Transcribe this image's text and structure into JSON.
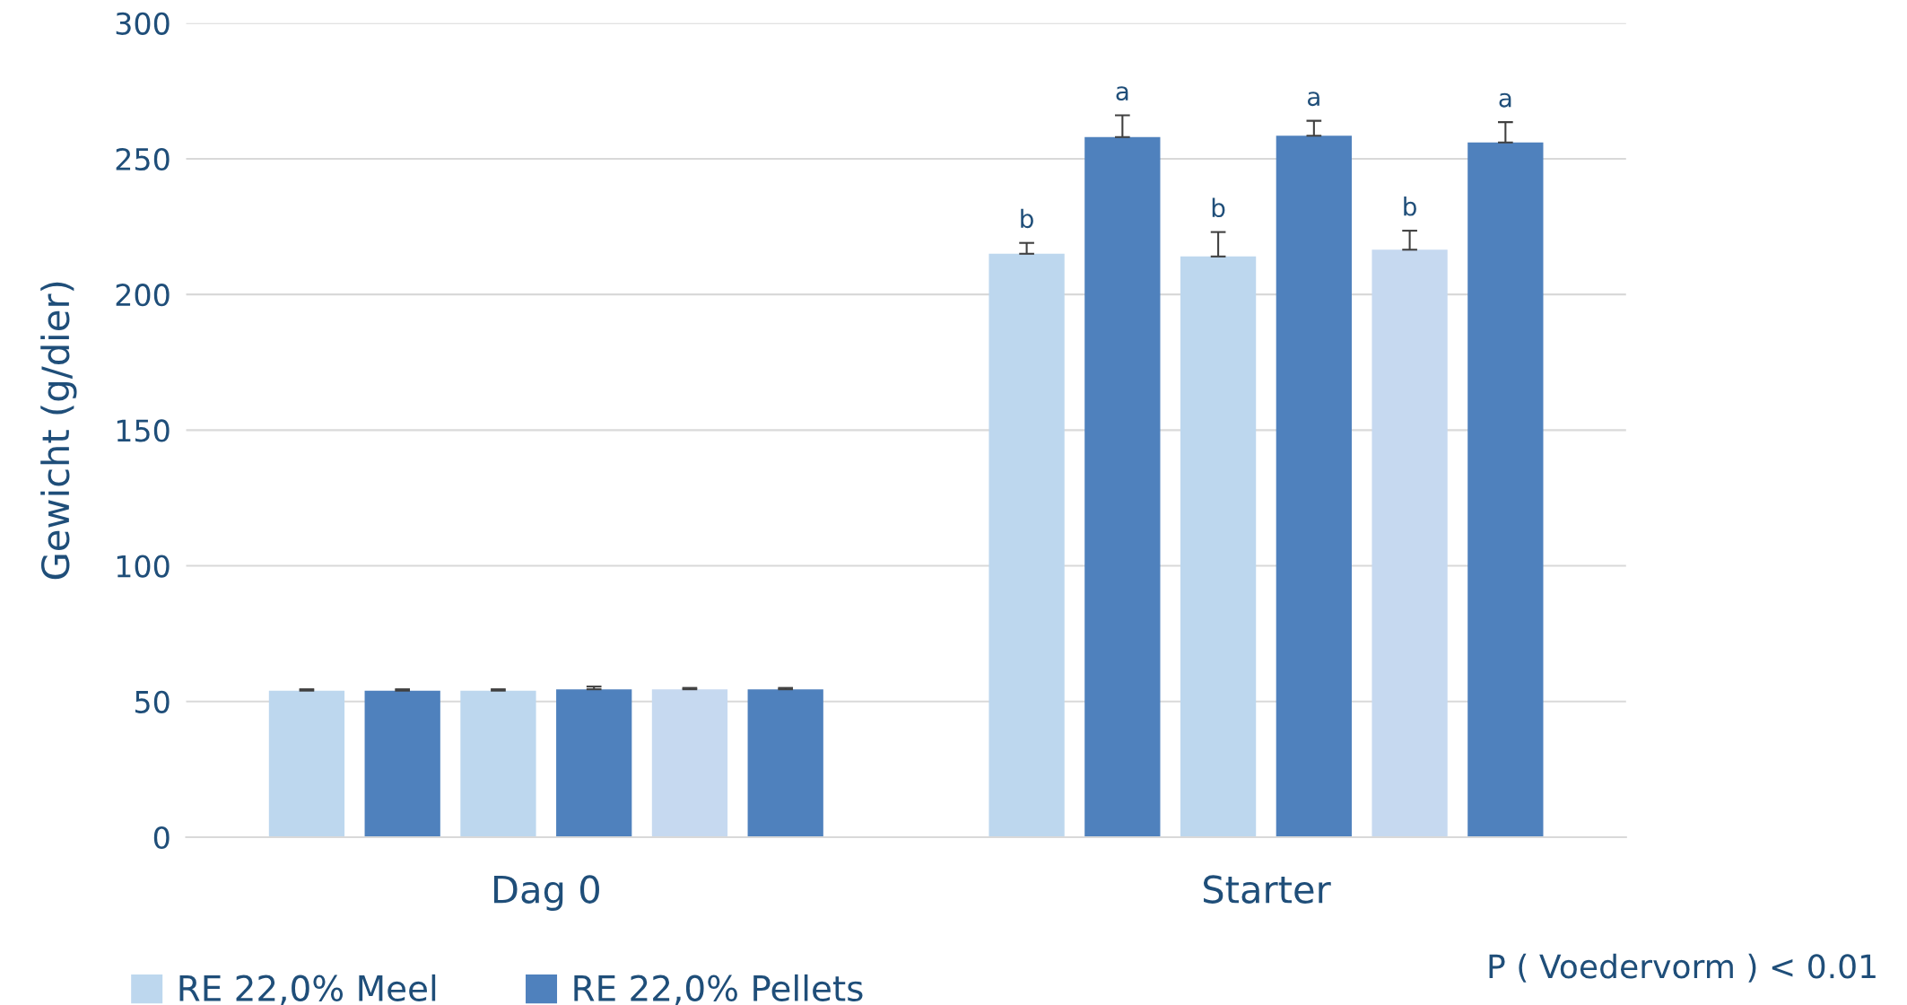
{
  "chart_data": {
    "type": "bar",
    "ylabel": "Gewicht (g/dier)",
    "categories": [
      "Dag 0",
      "Starter"
    ],
    "series": [
      {
        "name": "RE 22,0% Meel",
        "color": "#bdd7ee",
        "values": [
          54,
          215
        ],
        "errors": [
          0.5,
          4
        ],
        "value_labels": [
          null,
          "b"
        ]
      },
      {
        "name": "RE 22,0% Pellets",
        "color": "#4f81bd",
        "values": [
          54,
          258
        ],
        "errors": [
          0.5,
          8
        ],
        "value_labels": [
          null,
          "a"
        ]
      },
      {
        "color": "#bdd7ee",
        "values": [
          54,
          214
        ],
        "errors": [
          0.5,
          9
        ],
        "value_labels": [
          null,
          "b"
        ]
      },
      {
        "color": "#4f81bd",
        "values": [
          54.5,
          258.5
        ],
        "errors": [
          1,
          5.5
        ],
        "value_labels": [
          null,
          "a"
        ]
      },
      {
        "color": "#c6d9f0",
        "values": [
          54.5,
          216.5
        ],
        "errors": [
          0.5,
          7
        ],
        "value_labels": [
          null,
          "b"
        ]
      },
      {
        "color": "#4f81bd",
        "values": [
          54.5,
          256
        ],
        "errors": [
          0.5,
          7.5
        ],
        "value_labels": [
          null,
          "a"
        ]
      }
    ],
    "ylim": [
      0,
      300
    ],
    "yticks": [
      0,
      50,
      100,
      150,
      200,
      250,
      300
    ],
    "grid": "y",
    "legend": "bottom left",
    "annotations": [
      "P ( Voedervorm ) < 0.01"
    ]
  }
}
